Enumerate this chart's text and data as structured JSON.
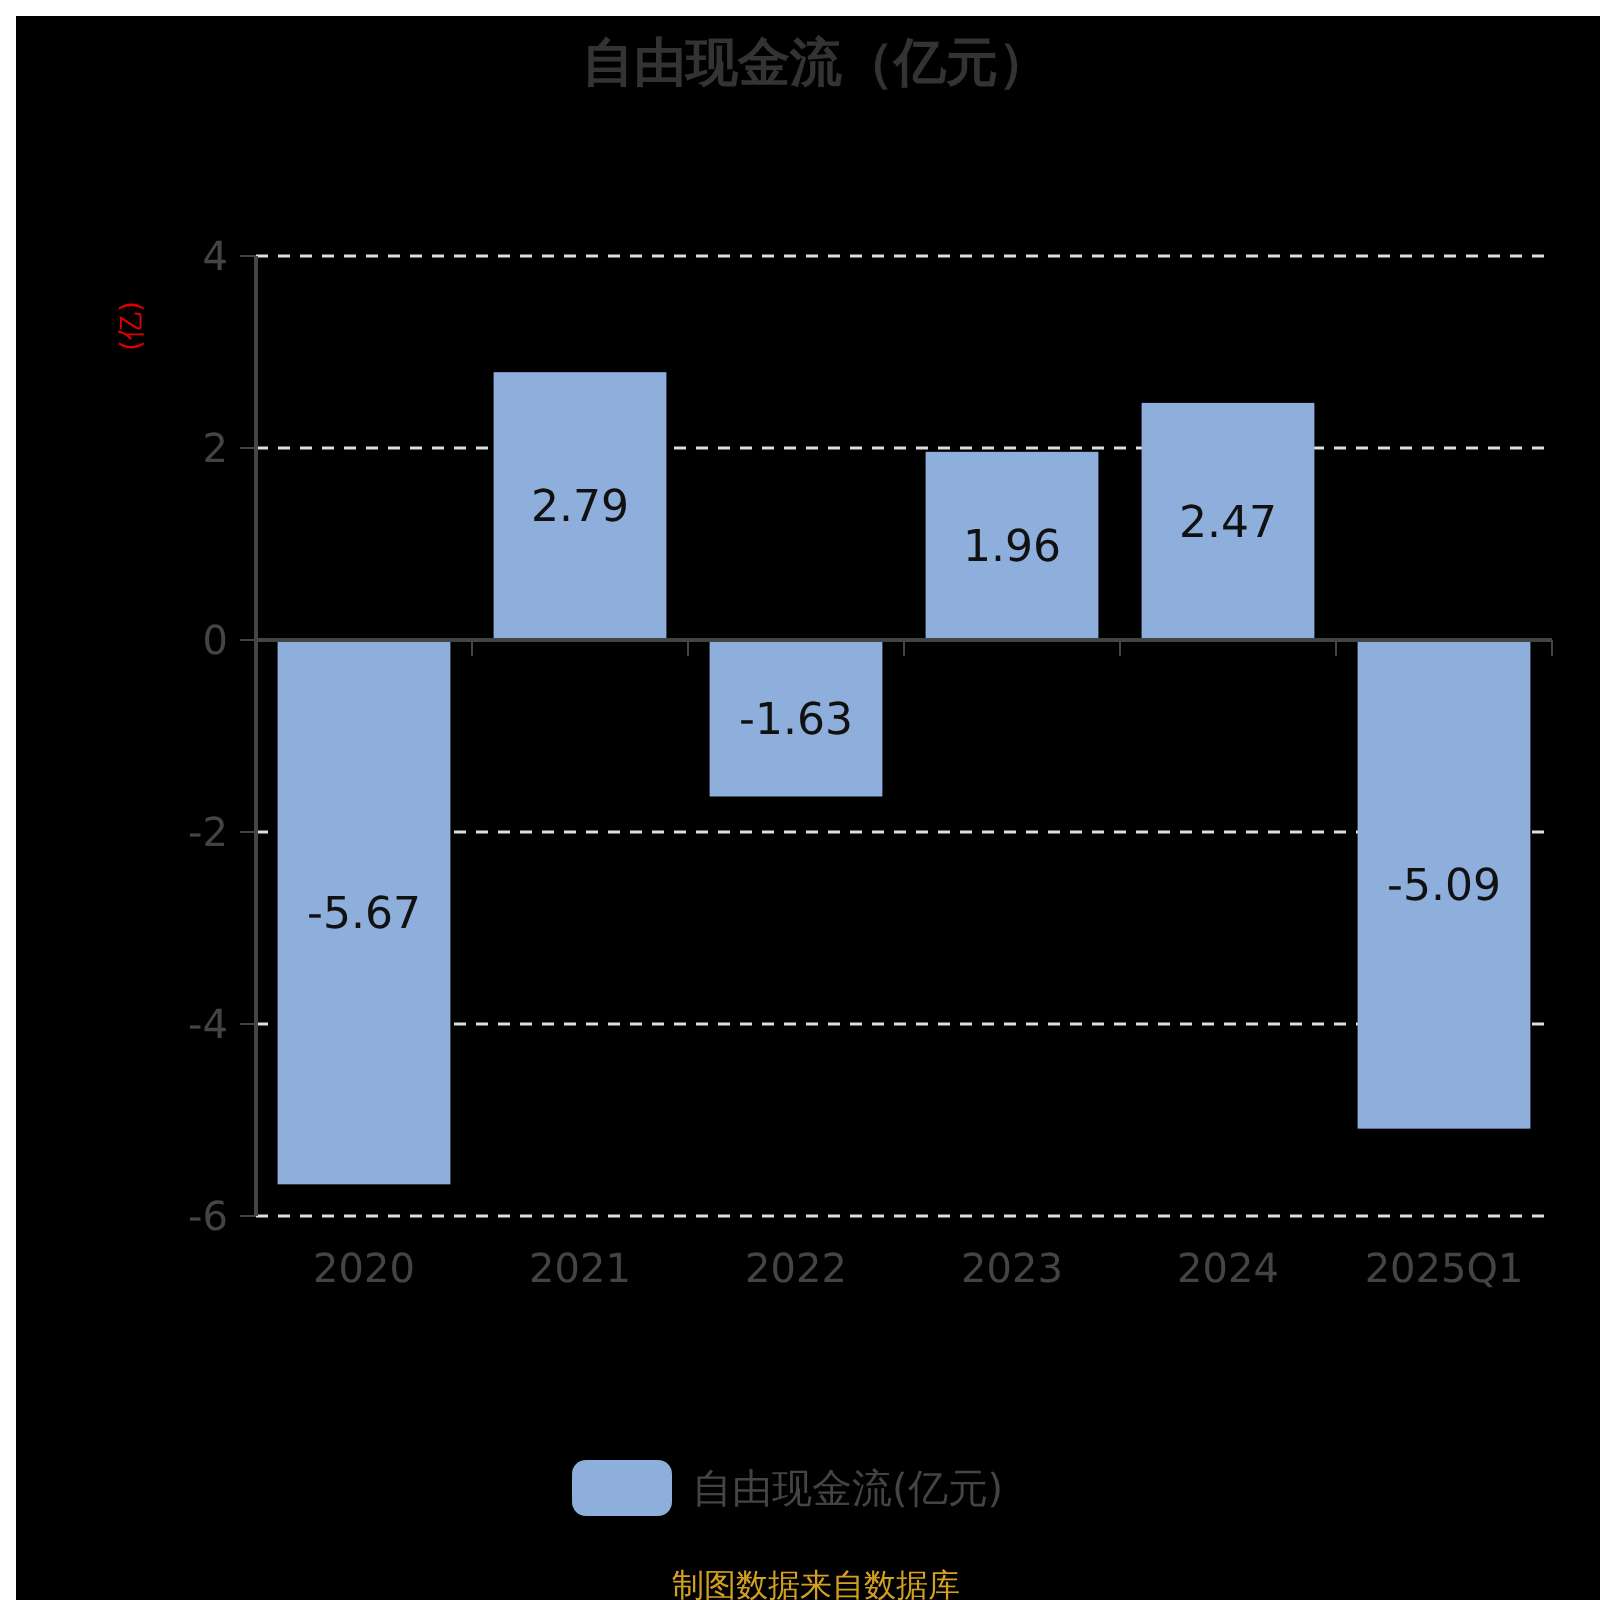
{
  "chart_data": {
    "type": "bar",
    "title": "自由现金流（亿元）",
    "ylabel": "(亿)",
    "categories": [
      "2020",
      "2021",
      "2022",
      "2023",
      "2024",
      "2025Q1"
    ],
    "series": [
      {
        "name": "自由现金流(亿元)",
        "color": "#8eaedc",
        "values": [
          -5.67,
          2.79,
          -1.63,
          1.96,
          2.47,
          -5.09
        ]
      }
    ],
    "ylim": [
      -6,
      4
    ],
    "yticks": [
      -6,
      -4,
      -2,
      0,
      2,
      4
    ],
    "grid": "y",
    "legend": "bottom",
    "data_labels": true,
    "annotations": [
      "制图数据来自数据库"
    ]
  }
}
